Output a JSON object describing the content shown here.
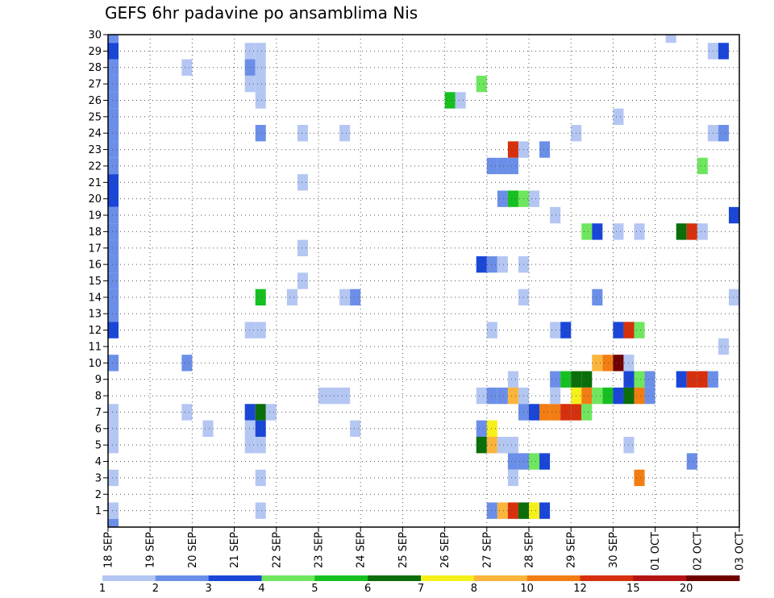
{
  "chart_data": {
    "type": "heatmap",
    "title": "GEFS 6hr padavine po ansamblima Nis",
    "x_labels": [
      "18 SEP",
      "19 SEP",
      "20 SEP",
      "21 SEP",
      "22 SEP",
      "23 SEP",
      "24 SEP",
      "25 SEP",
      "26 SEP",
      "27 SEP",
      "28 SEP",
      "29 SEP",
      "30 SEP",
      "01 OCT",
      "02 OCT",
      "03 OCT"
    ],
    "y_labels": [
      1,
      2,
      3,
      4,
      5,
      6,
      7,
      8,
      9,
      10,
      11,
      12,
      13,
      14,
      15,
      16,
      17,
      18,
      19,
      20,
      21,
      22,
      23,
      24,
      25,
      26,
      27,
      28,
      29,
      30
    ],
    "y_range": [
      0,
      30
    ],
    "steps_per_day": 4,
    "n_steps": 60,
    "grid": true,
    "legend": {
      "placement": "bottom",
      "labels": [
        "1",
        "2",
        "3",
        "4",
        "5",
        "6",
        "7",
        "8",
        "10",
        "12",
        "15",
        "20"
      ],
      "colors": [
        "#b4c6f2",
        "#6b8fe8",
        "#1a46d8",
        "#6ee65e",
        "#16c020",
        "#0a6e0a",
        "#f6f01a",
        "#fbb43c",
        "#f27d12",
        "#d6300c",
        "#b41414",
        "#6e0000"
      ]
    },
    "cells": [
      [
        0,
        30,
        0,
        1
      ],
      [
        0,
        29,
        0,
        2
      ],
      [
        0,
        28,
        0,
        1
      ],
      [
        0,
        27,
        0,
        1
      ],
      [
        0,
        26,
        0,
        1
      ],
      [
        0,
        25,
        0,
        1
      ],
      [
        0,
        24,
        0,
        1
      ],
      [
        0,
        23,
        0,
        1
      ],
      [
        0,
        22,
        0,
        1
      ],
      [
        0,
        21,
        0,
        2
      ],
      [
        0,
        20,
        0,
        2
      ],
      [
        0,
        19,
        0,
        1
      ],
      [
        0,
        18,
        0,
        1
      ],
      [
        0,
        17,
        0,
        1
      ],
      [
        0,
        16,
        0,
        1
      ],
      [
        0,
        15,
        0,
        1
      ],
      [
        0,
        14,
        0,
        1
      ],
      [
        0,
        13,
        0,
        1
      ],
      [
        0,
        12,
        0,
        2
      ],
      [
        0,
        10,
        0,
        1
      ],
      [
        0,
        7,
        0,
        0
      ],
      [
        0,
        6,
        0,
        0
      ],
      [
        0,
        5,
        0,
        0
      ],
      [
        0,
        3,
        0,
        0
      ],
      [
        0,
        1,
        0,
        0
      ],
      [
        0,
        0,
        0,
        1
      ],
      [
        7,
        28,
        0,
        0
      ],
      [
        7,
        10,
        0,
        1
      ],
      [
        7,
        7,
        0,
        0
      ],
      [
        9,
        6,
        0,
        0
      ],
      [
        13,
        29,
        0,
        0
      ],
      [
        14,
        29,
        0,
        0
      ],
      [
        13,
        28,
        0,
        1
      ],
      [
        14,
        28,
        0,
        0
      ],
      [
        13,
        27,
        0,
        0
      ],
      [
        14,
        27,
        0,
        0
      ],
      [
        14,
        26,
        0,
        0
      ],
      [
        14,
        24,
        0,
        1
      ],
      [
        14,
        14,
        0,
        4
      ],
      [
        13,
        12,
        0,
        0
      ],
      [
        14,
        12,
        0,
        0
      ],
      [
        13,
        7,
        0,
        2
      ],
      [
        14,
        7,
        0,
        5
      ],
      [
        15,
        7,
        0,
        0
      ],
      [
        13,
        6,
        0,
        0
      ],
      [
        14,
        6,
        0,
        2
      ],
      [
        13,
        5,
        0,
        0
      ],
      [
        14,
        5,
        0,
        0
      ],
      [
        14,
        3,
        0,
        0
      ],
      [
        14,
        1,
        0,
        0
      ],
      [
        18,
        24,
        0,
        0
      ],
      [
        18,
        21,
        0,
        0
      ],
      [
        18,
        17,
        0,
        0
      ],
      [
        18,
        15,
        0,
        0
      ],
      [
        17,
        14,
        0,
        0
      ],
      [
        20,
        8,
        0,
        0
      ],
      [
        21,
        8,
        0,
        0
      ],
      [
        22,
        8,
        0,
        0
      ],
      [
        22,
        24,
        0,
        0
      ],
      [
        22,
        14,
        0,
        0
      ],
      [
        23,
        14,
        0,
        1
      ],
      [
        23,
        6,
        0,
        0
      ],
      [
        32,
        26,
        0,
        4
      ],
      [
        33,
        26,
        0,
        0
      ],
      [
        35,
        27,
        0,
        3
      ],
      [
        38,
        23,
        0,
        9
      ],
      [
        39,
        23,
        0,
        0
      ],
      [
        41,
        23,
        0,
        1
      ],
      [
        36,
        22,
        0,
        1
      ],
      [
        37,
        22,
        0,
        1
      ],
      [
        38,
        22,
        0,
        1
      ],
      [
        37,
        20,
        0,
        1
      ],
      [
        38,
        20,
        0,
        4
      ],
      [
        39,
        20,
        0,
        3
      ],
      [
        40,
        20,
        0,
        0
      ],
      [
        35,
        16,
        0,
        2
      ],
      [
        36,
        16,
        0,
        1
      ],
      [
        37,
        16,
        0,
        0
      ],
      [
        39,
        16,
        0,
        0
      ],
      [
        39,
        14,
        0,
        0
      ],
      [
        36,
        12,
        0,
        0
      ],
      [
        38,
        9,
        0,
        0
      ],
      [
        35,
        8,
        0,
        0
      ],
      [
        36,
        8,
        0,
        1
      ],
      [
        37,
        8,
        0,
        1
      ],
      [
        38,
        8,
        0,
        7
      ],
      [
        39,
        8,
        0,
        0
      ],
      [
        39,
        7,
        0,
        1
      ],
      [
        40,
        7,
        0,
        2
      ],
      [
        41,
        7,
        0,
        8
      ],
      [
        42,
        7,
        0,
        8
      ],
      [
        43,
        7,
        0,
        9
      ],
      [
        44,
        7,
        0,
        9
      ],
      [
        45,
        7,
        0,
        3
      ],
      [
        35,
        6,
        0,
        1
      ],
      [
        36,
        6,
        0,
        6
      ],
      [
        35,
        5,
        0,
        5
      ],
      [
        36,
        5,
        0,
        7
      ],
      [
        37,
        5,
        0,
        0
      ],
      [
        38,
        5,
        0,
        0
      ],
      [
        38,
        4,
        0,
        1
      ],
      [
        39,
        4,
        0,
        1
      ],
      [
        40,
        4,
        0,
        3
      ],
      [
        41,
        4,
        0,
        2
      ],
      [
        38,
        3,
        0,
        0
      ],
      [
        36,
        1,
        0,
        1
      ],
      [
        37,
        1,
        0,
        7
      ],
      [
        38,
        1,
        0,
        9
      ],
      [
        39,
        1,
        0,
        5
      ],
      [
        40,
        1,
        0,
        6
      ],
      [
        41,
        1,
        0,
        2
      ],
      [
        44,
        24,
        0,
        0
      ],
      [
        42,
        19,
        0,
        0
      ],
      [
        45,
        18,
        0,
        3
      ],
      [
        46,
        18,
        0,
        2
      ],
      [
        46,
        14,
        0,
        1
      ],
      [
        42,
        12,
        0,
        0
      ],
      [
        43,
        12,
        0,
        2
      ],
      [
        42,
        9,
        0,
        1
      ],
      [
        43,
        9,
        0,
        4
      ],
      [
        44,
        9,
        0,
        5
      ],
      [
        45,
        9,
        0,
        5
      ],
      [
        42,
        8,
        0,
        0
      ],
      [
        44,
        8,
        0,
        6
      ],
      [
        45,
        8,
        0,
        8
      ],
      [
        46,
        10,
        0,
        7
      ],
      [
        47,
        10,
        0,
        8
      ],
      [
        48,
        10,
        0,
        11
      ],
      [
        48,
        25,
        0,
        0
      ],
      [
        48,
        18,
        0,
        0
      ],
      [
        48,
        12,
        0,
        2
      ],
      [
        49,
        12,
        0,
        9
      ],
      [
        50,
        12,
        0,
        3
      ],
      [
        49,
        10,
        0,
        0
      ],
      [
        49,
        9,
        0,
        2
      ],
      [
        50,
        9,
        0,
        3
      ],
      [
        51,
        9,
        0,
        1
      ],
      [
        46,
        8,
        0,
        3
      ],
      [
        47,
        8,
        0,
        4
      ],
      [
        48,
        8,
        0,
        2
      ],
      [
        49,
        8,
        0,
        5
      ],
      [
        50,
        8,
        0,
        8
      ],
      [
        51,
        8,
        0,
        1
      ],
      [
        49,
        5,
        0,
        0
      ],
      [
        50,
        3,
        0,
        8
      ],
      [
        50,
        18,
        0,
        0
      ],
      [
        53,
        30,
        0,
        0
      ],
      [
        54,
        18,
        0,
        5
      ],
      [
        55,
        18,
        0,
        9
      ],
      [
        56,
        18,
        0,
        0
      ],
      [
        56,
        22,
        0,
        3
      ],
      [
        54,
        9,
        0,
        2
      ],
      [
        55,
        9,
        0,
        9
      ],
      [
        56,
        9,
        0,
        9
      ],
      [
        57,
        9,
        0,
        1
      ],
      [
        55,
        4,
        0,
        1
      ],
      [
        57,
        29,
        0,
        0
      ],
      [
        58,
        29,
        0,
        2
      ],
      [
        57,
        24,
        0,
        0
      ],
      [
        58,
        24,
        0,
        1
      ],
      [
        58,
        11,
        0,
        0
      ],
      [
        59,
        19,
        0,
        2
      ],
      [
        59,
        14,
        0,
        0
      ]
    ]
  }
}
